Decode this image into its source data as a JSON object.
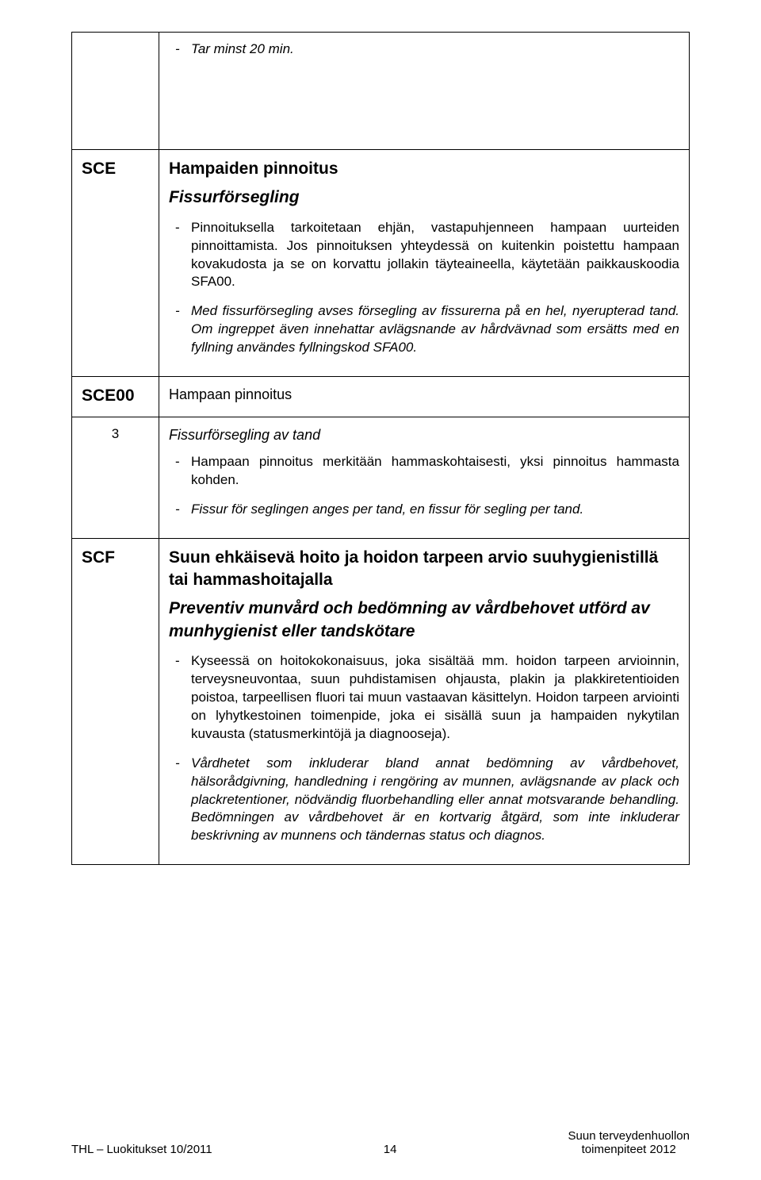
{
  "rows": {
    "top": {
      "bullet": "Tar minst 20 min."
    },
    "sce": {
      "code": "SCE",
      "title": "Hampaiden pinnoitus",
      "subtitle": "Fissurförsegling",
      "bullets": [
        "Pinnoituksella tarkoitetaan ehjän, vastapuhjenneen hampaan uurteiden pinnoittamista. Jos pinnoituksen yhteydessä on kuitenkin poistettu hampaan kovakudosta ja se on korvattu jollakin täyteaineella, käytetään paikkauskoodia SFA00."
      ],
      "bullets_italic": [
        "Med fissurförsegling avses försegling av fissurerna på en hel, nyerupterad tand. Om ingreppet även innehattar avlägsnande av hårdvävnad som ersätts med en fyllning användes fyllningskod SFA00."
      ]
    },
    "sce00": {
      "code": "SCE00",
      "title": "Hampaan pinnoitus"
    },
    "row3": {
      "num": "3",
      "subtitle": "Fissurförsegling av tand",
      "bullets": [
        "Hampaan pinnoitus merkitään hammaskohtaisesti, yksi pinnoitus hammasta kohden."
      ],
      "bullets_italic": [
        "Fissur för seglingen anges per tand, en fissur för segling per tand."
      ]
    },
    "scf": {
      "code": "SCF",
      "title": "Suun ehkäisevä hoito ja hoidon tarpeen arvio suuhygienistillä tai hammashoitajalla",
      "subtitle": "Preventiv munvård och bedömning av vårdbehovet utförd av munhygienist eller tandskötare",
      "bullets": [
        "Kyseessä on hoitokokonaisuus, joka sisältää mm. hoidon tarpeen arvioinnin, terveysneuvontaa, suun puhdistamisen ohjausta, plakin ja plakkiretentioiden poistoa, tarpeellisen fluori tai muun vastaavan käsittelyn. Hoidon tarpeen arviointi on lyhytkestoinen toimenpide, joka ei sisällä suun ja hampaiden nykytilan kuvausta (statusmerkintöjä ja diagnooseja)."
      ],
      "bullets_italic": [
        "Vårdhetet som inkluderar bland annat bedömning av vårdbehovet, hälsorådgivning, handledning i rengöring av munnen, avlägsnande av plack och plackretentioner, nödvändig fluorbehandling eller annat motsvarande behandling. Bedömningen av vårdbehovet är en kortvarig åtgärd, som inte inkluderar beskrivning av munnens och tändernas status och diagnos."
      ]
    }
  },
  "footer": {
    "left": "THL – Luokitukset 10/2011",
    "pagenum": "14",
    "right_line1": "Suun terveydenhuollon",
    "right_line2": "toimenpiteet 2012"
  }
}
